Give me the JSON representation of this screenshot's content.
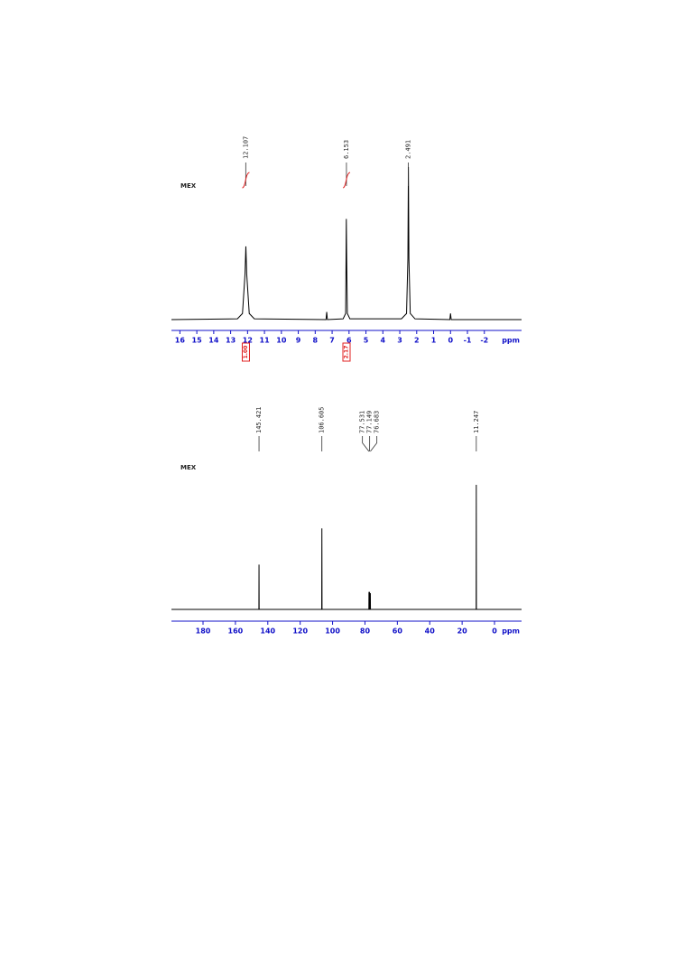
{
  "chart_data": [
    {
      "type": "line",
      "label": "MEX",
      "xlabel": "ppm",
      "color": "#000000",
      "xlim": [
        16.5,
        -4.2
      ],
      "xticks": [
        16,
        15,
        14,
        13,
        12,
        11,
        10,
        9,
        8,
        7,
        6,
        5,
        4,
        3,
        2,
        1,
        0,
        -1,
        -2
      ],
      "ylim": [
        0,
        100
      ],
      "x": [
        16.5,
        12.6,
        12.3,
        12.15,
        12.1,
        12.05,
        11.9,
        11.6,
        7.36,
        7.32,
        7.28,
        6.35,
        6.2,
        6.16,
        6.14,
        6.1,
        5.95,
        2.9,
        2.6,
        2.52,
        2.49,
        2.46,
        2.38,
        2.1,
        0.04,
        0,
        -0.04,
        -4.2
      ],
      "values": [
        0,
        0.5,
        4,
        30,
        48,
        30,
        4,
        0.5,
        0,
        5,
        0,
        0.5,
        4,
        66,
        40,
        4,
        0.5,
        0.5,
        4,
        40,
        100,
        40,
        4,
        0.5,
        0,
        4,
        0,
        0
      ],
      "peak_labels": [
        12.107,
        6.153,
        2.491
      ],
      "integrals": [
        {
          "x": 12.1,
          "value": 1,
          "label": "1.00"
        },
        {
          "x": 6.15,
          "value": 2.17,
          "label": "2.17"
        }
      ]
    },
    {
      "type": "line",
      "label": "MEX",
      "xlabel": "ppm",
      "color": "#000000",
      "xlim": [
        199.5,
        -16.7
      ],
      "xticks": [
        180,
        160,
        140,
        120,
        100,
        80,
        60,
        40,
        20,
        0
      ],
      "ylim": [
        0,
        100
      ],
      "x": [
        199.5,
        145.5,
        145.42,
        145.34,
        106.7,
        106.6,
        106.5,
        77.6,
        77.53,
        77.45,
        77.2,
        77.15,
        77.1,
        76.75,
        76.68,
        76.6,
        11.33,
        11.25,
        11.17,
        -16.7
      ],
      "values": [
        0,
        0,
        36,
        0,
        0,
        65,
        0,
        0,
        14,
        0,
        0,
        14,
        0,
        0,
        13,
        0,
        0,
        100,
        0,
        0
      ],
      "peak_labels": [
        145.421,
        106.605,
        77.531,
        77.149,
        76.683,
        11.247
      ]
    }
  ]
}
